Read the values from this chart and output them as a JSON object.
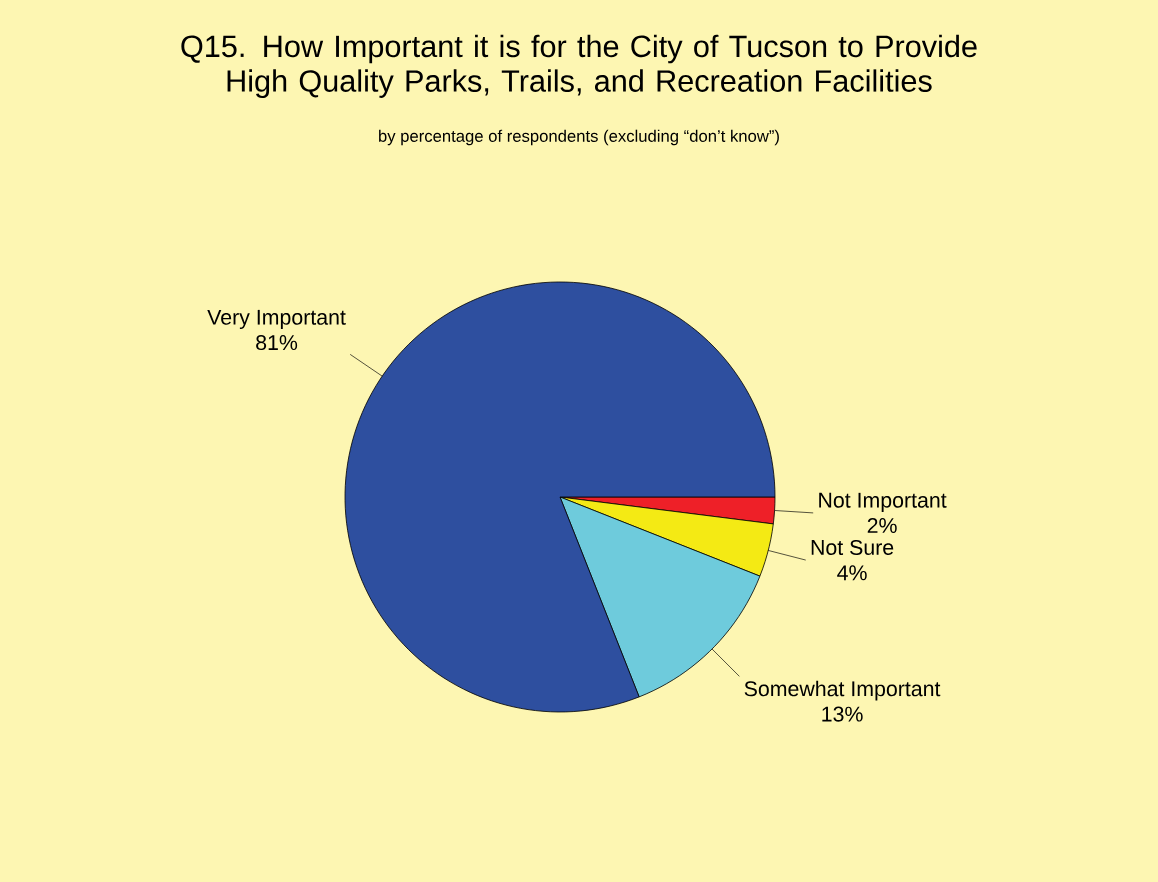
{
  "chart_data": {
    "type": "pie",
    "title": "Q15. How Important it is for the City of Tucson to Provide High Quality Parks, Trails, and Recreation Facilities",
    "subtitle": "by percentage of respondents (excluding “don’t know”)",
    "categories": [
      "Not Important",
      "Not Sure",
      "Somewhat Important",
      "Very Important"
    ],
    "values": [
      2,
      4,
      13,
      81
    ],
    "value_labels": [
      "2%",
      "4%",
      "13%",
      "81%"
    ],
    "colors": [
      "#ee2028",
      "#f4ea14",
      "#6ecbdc",
      "#2e4f9f"
    ]
  }
}
